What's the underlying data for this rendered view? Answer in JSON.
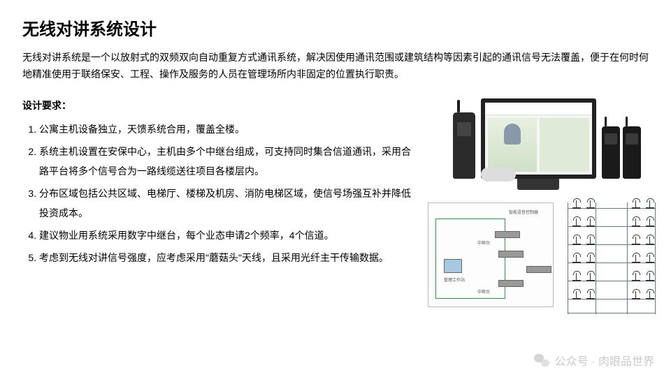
{
  "title": "无线对讲系统设计",
  "intro": "无线对讲系统是一个以放射式的双频双向自动重复方式通讯系统，解决因使用通讯范围或建筑结构等因素引起的通讯信号无法覆盖，便于在何时何地精准使用于联络保安、工程、操作及服务的人员在管理场所内非固定的位置执行职责。",
  "req_title": "设计要求：",
  "requirements": [
    "公寓主机设备独立，天馈系统合用，覆盖全楼。",
    "系统主机设置在安保中心，主机由多个中继台组成，可支持同时集合信道通讯，采用合路平台将多个信号合为一路线缆送往项目各楼层内。",
    "分布区域包括公共区域、电梯厅、楼梯及机房、消防电梯区域，使信号场强互补并降低投资成本。",
    "建议物业用系统采用数字中继台，每个业态申请2个频率，4个信道。",
    "考虑到无线对讲信号强度，应考虑采用\"蘑菇头\"天线，且采用光纤主干传输数据。"
  ],
  "watermark": {
    "label": "公众号 · 肉眼品世界"
  },
  "colors": {
    "text": "#000000",
    "background": "#ffffff",
    "diagram_border": "#2a9d3f",
    "antenna_line": "#5a7a95",
    "device_dark": "#2a2a2a"
  },
  "antenna_layout": {
    "columns": [
      10,
      50,
      95,
      135
    ],
    "rows": [
      8,
      34,
      60,
      86,
      112,
      138,
      158
    ],
    "antenna_x": [
      18,
      38,
      103,
      123
    ]
  }
}
